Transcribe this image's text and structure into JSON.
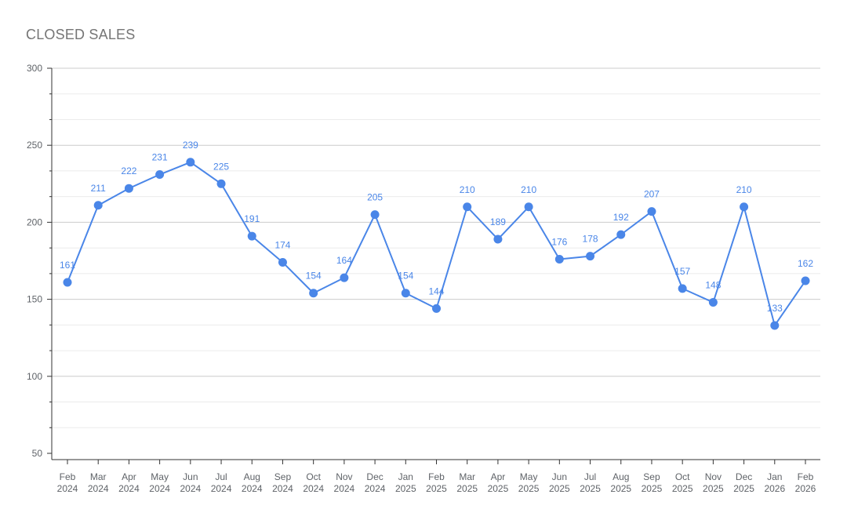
{
  "chart_data": {
    "type": "line",
    "title": "CLOSED SALES",
    "xlabel": "",
    "ylabel": "",
    "ylim": [
      50,
      300
    ],
    "yticks": [
      50,
      100,
      150,
      200,
      250,
      300
    ],
    "grid": true,
    "legend": "none",
    "color": "#4a86e8",
    "categories": [
      [
        "Feb",
        "2024"
      ],
      [
        "Mar",
        "2024"
      ],
      [
        "Apr",
        "2024"
      ],
      [
        "May",
        "2024"
      ],
      [
        "Jun",
        "2024"
      ],
      [
        "Jul",
        "2024"
      ],
      [
        "Aug",
        "2024"
      ],
      [
        "Sep",
        "2024"
      ],
      [
        "Oct",
        "2024"
      ],
      [
        "Nov",
        "2024"
      ],
      [
        "Dec",
        "2024"
      ],
      [
        "Jan",
        "2025"
      ],
      [
        "Feb",
        "2025"
      ],
      [
        "Mar",
        "2025"
      ],
      [
        "Apr",
        "2025"
      ],
      [
        "May",
        "2025"
      ],
      [
        "Jun",
        "2025"
      ],
      [
        "Jul",
        "2025"
      ],
      [
        "Aug",
        "2025"
      ],
      [
        "Sep",
        "2025"
      ],
      [
        "Oct",
        "2025"
      ],
      [
        "Nov",
        "2025"
      ],
      [
        "Dec",
        "2025"
      ],
      [
        "Jan",
        "2026"
      ],
      [
        "Feb",
        "2026"
      ]
    ],
    "series": [
      {
        "values": [
          161,
          211,
          222,
          231,
          239,
          225,
          191,
          174,
          154,
          164,
          205,
          154,
          144,
          210,
          189,
          210,
          176,
          178,
          192,
          207,
          157,
          148,
          210,
          133,
          162
        ]
      }
    ]
  }
}
